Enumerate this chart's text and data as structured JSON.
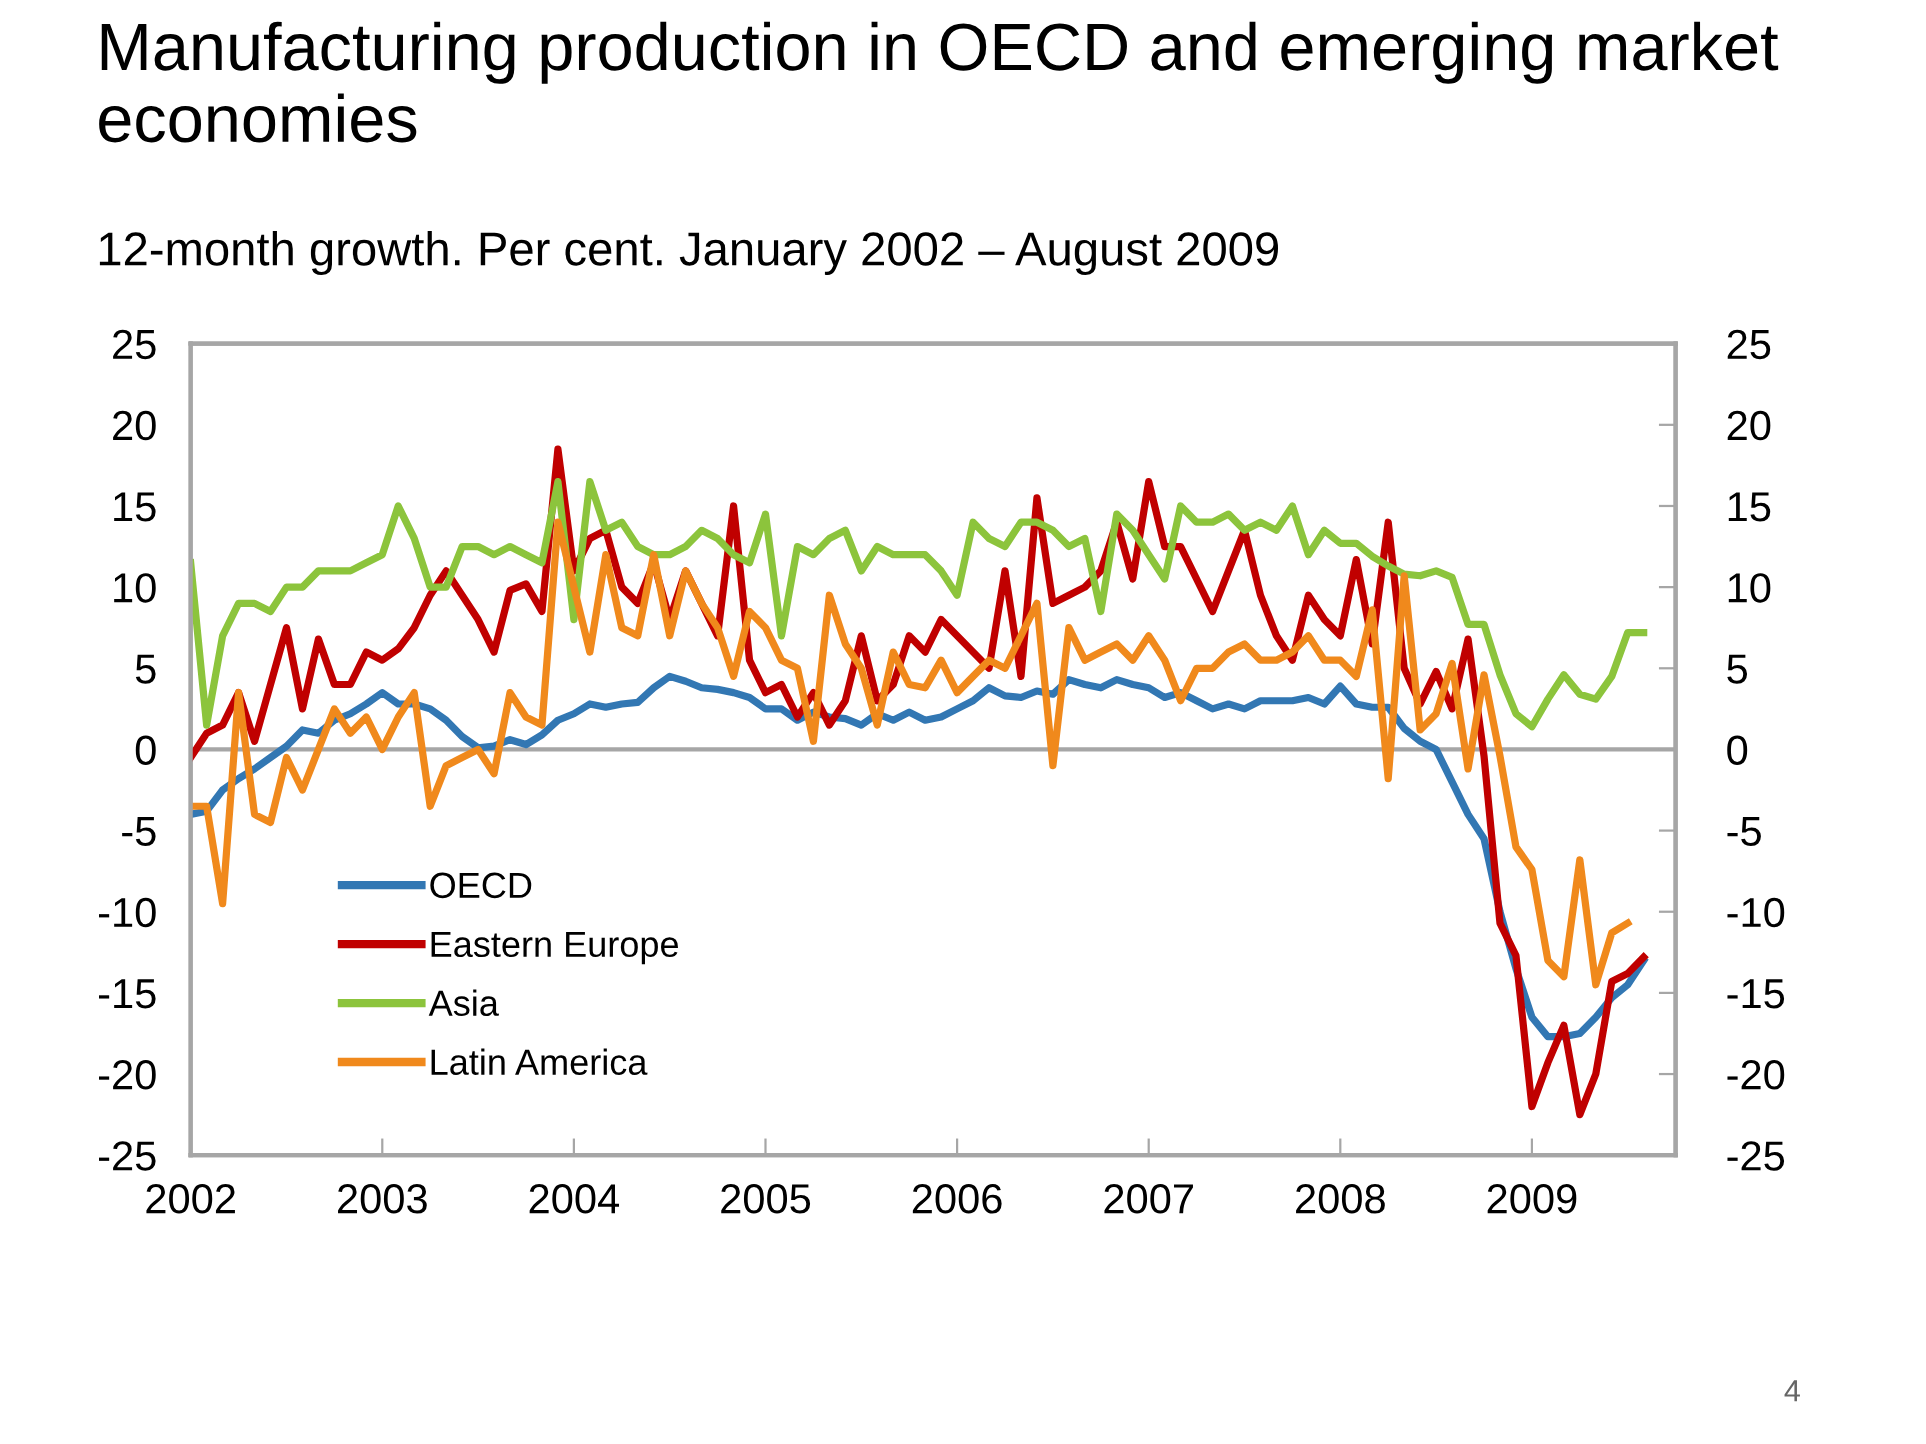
{
  "chart_data": {
    "type": "line",
    "title": "Manufacturing production in OECD and emerging market economies",
    "subtitle": "12-month growth. Per cent. January 2002 – August 2009",
    "annotations": [
      "4"
    ],
    "x": [
      "2002-01",
      "2002-02",
      "2002-03",
      "2002-04",
      "2002-05",
      "2002-06",
      "2002-07",
      "2002-08",
      "2002-09",
      "2002-10",
      "2002-11",
      "2002-12",
      "2003-01",
      "2003-02",
      "2003-03",
      "2003-04",
      "2003-05",
      "2003-06",
      "2003-07",
      "2003-08",
      "2003-09",
      "2003-10",
      "2003-11",
      "2003-12",
      "2004-01",
      "2004-02",
      "2004-03",
      "2004-04",
      "2004-05",
      "2004-06",
      "2004-07",
      "2004-08",
      "2004-09",
      "2004-10",
      "2004-11",
      "2004-12",
      "2005-01",
      "2005-02",
      "2005-03",
      "2005-04",
      "2005-05",
      "2005-06",
      "2005-07",
      "2005-08",
      "2005-09",
      "2005-10",
      "2005-11",
      "2005-12",
      "2006-01",
      "2006-02",
      "2006-03",
      "2006-04",
      "2006-05",
      "2006-06",
      "2006-07",
      "2006-08",
      "2006-09",
      "2006-10",
      "2006-11",
      "2006-12",
      "2007-01",
      "2007-02",
      "2007-03",
      "2007-04",
      "2007-05",
      "2007-06",
      "2007-07",
      "2007-08",
      "2007-09",
      "2007-10",
      "2007-11",
      "2007-12",
      "2008-01",
      "2008-02",
      "2008-03",
      "2008-04",
      "2008-05",
      "2008-06",
      "2008-07",
      "2008-08",
      "2008-09",
      "2008-10",
      "2008-11",
      "2008-12",
      "2009-01",
      "2009-02",
      "2009-03",
      "2009-04",
      "2009-05",
      "2009-06",
      "2009-07",
      "2009-08"
    ],
    "series": [
      {
        "name": "OECD",
        "color": "#3277b3",
        "values": [
          -4,
          -3.8,
          -2.5,
          -1.8,
          -1.2,
          -0.5,
          0.2,
          1.2,
          1.0,
          1.8,
          2.2,
          2.8,
          3.5,
          2.8,
          2.8,
          2.5,
          1.8,
          0.8,
          0.1,
          0.2,
          0.6,
          0.3,
          0.9,
          1.8,
          2.2,
          2.8,
          2.6,
          2.8,
          2.9,
          3.8,
          4.5,
          4.2,
          3.8,
          3.7,
          3.5,
          3.2,
          2.5,
          2.5,
          1.8,
          2.3,
          2.0,
          1.9,
          1.5,
          2.2,
          1.8,
          2.3,
          1.8,
          2.0,
          2.5,
          3.0,
          3.8,
          3.3,
          3.2,
          3.6,
          3.4,
          4.3,
          4.0,
          3.8,
          4.3,
          4.0,
          3.8,
          3.2,
          3.5,
          3.0,
          2.5,
          2.8,
          2.5,
          3.0,
          3.0,
          3.0,
          3.2,
          2.8,
          3.9,
          2.8,
          2.6,
          2.6,
          1.3,
          0.5,
          0,
          -2,
          -4,
          -5.5,
          -10,
          -13.5,
          -16.5,
          -17.7,
          -17.7,
          -17.5,
          -16.5,
          -15.3,
          -14.5,
          -13
        ]
      },
      {
        "name": "Eastern Europe",
        "color": "#c00000",
        "values": [
          -0.5,
          1,
          1.5,
          3.5,
          0.5,
          4,
          7.5,
          2.5,
          6.8,
          4,
          4,
          6,
          5.5,
          6.2,
          7.5,
          9.5,
          11,
          9.5,
          8,
          6,
          9.8,
          10.2,
          8.5,
          18.5,
          11,
          13,
          13.5,
          10,
          9,
          11.5,
          8,
          11,
          9,
          7,
          15,
          5.5,
          3.5,
          4,
          2,
          3.5,
          1.5,
          3,
          7,
          3,
          4,
          7,
          6,
          8,
          7,
          6,
          5,
          11,
          4.5,
          15.5,
          9,
          9.5,
          10,
          11,
          14,
          10.5,
          16.5,
          12.5,
          12.5,
          10.5,
          8.5,
          11,
          13.5,
          9.5,
          7,
          5.5,
          9.5,
          8,
          7,
          11.7,
          6.5,
          14,
          5,
          2.8,
          4.8,
          2.5,
          6.8,
          -0.4,
          -10.7,
          -12.7,
          -22,
          -19.3,
          -17,
          -22.5,
          -20,
          -14.3,
          -13.8,
          -12.8
        ]
      },
      {
        "name": "Asia",
        "color": "#8cc43c",
        "values": [
          11.5,
          1.5,
          7,
          9,
          9,
          8.5,
          10,
          10,
          11,
          11,
          11,
          11.5,
          12,
          15,
          13,
          10,
          10,
          12.5,
          12.5,
          12,
          12.5,
          12,
          11.5,
          16.5,
          8,
          16.5,
          13.5,
          14,
          12.5,
          12,
          12,
          12.5,
          13.5,
          13,
          12,
          11.5,
          14.5,
          7,
          12.5,
          12,
          13,
          13.5,
          11,
          12.5,
          12,
          12,
          12,
          11,
          9.5,
          14,
          13,
          12.5,
          14,
          14,
          13.5,
          12.5,
          13,
          8.5,
          14.5,
          13.5,
          12,
          10.5,
          15,
          14,
          14,
          14.5,
          13.5,
          14,
          13.5,
          15,
          12,
          13.5,
          12.7,
          12.7,
          11.9,
          11.3,
          10.8,
          10.7,
          11,
          10.6,
          7.7,
          7.7,
          4.6,
          2.2,
          1.4,
          3.1,
          4.6,
          3.4,
          3.1,
          4.5,
          7.2,
          7.2
        ]
      },
      {
        "name": "Latin America",
        "color": "#f0891c",
        "values": [
          -3.5,
          -3.5,
          -9.5,
          3.5,
          -4,
          -4.5,
          -0.5,
          -2.5,
          0,
          2.5,
          1,
          2,
          0,
          2,
          3.5,
          -3.5,
          -1,
          -0.5,
          0,
          -1.5,
          3.5,
          2,
          1.5,
          14,
          10,
          6,
          12,
          7.5,
          7,
          12,
          7,
          11,
          9,
          7.5,
          4.5,
          8.5,
          7.5,
          5.5,
          5,
          0.5,
          9.5,
          6.5,
          5,
          1.5,
          6,
          4,
          3.8,
          5.5,
          3.5,
          4.5,
          5.5,
          5,
          7,
          9,
          -1,
          7.5,
          5.5,
          6,
          6.5,
          5.5,
          7,
          5.5,
          3,
          5,
          5,
          6,
          6.5,
          5.5,
          5.5,
          6,
          7,
          5.5,
          5.5,
          4.5,
          8.6,
          -1.8,
          10.7,
          1.2,
          2.2,
          5.3,
          -1.2,
          4.6,
          -0.4,
          -6,
          -7.4,
          -13,
          -14,
          -6.8,
          -14.5,
          -11.3,
          -10.7,
          null
        ]
      }
    ],
    "xlim": [
      "2002-01",
      "2009-10"
    ],
    "xticks": [
      "2002",
      "2003",
      "2004",
      "2005",
      "2006",
      "2007",
      "2008",
      "2009"
    ],
    "ylim": [
      -25,
      25
    ],
    "yticks": [
      -25,
      -20,
      -15,
      -10,
      -5,
      0,
      5,
      10,
      15,
      20,
      25
    ],
    "y2lim": [
      -25,
      25
    ],
    "y2ticks": [
      -25,
      -20,
      -15,
      -10,
      -5,
      0,
      5,
      10,
      15,
      20,
      25
    ],
    "ref_lines": [
      {
        "axis": "y",
        "value": 0,
        "color": "#a6a6a6"
      }
    ],
    "legend": "bottom left",
    "grid": false,
    "line_style": "solid",
    "marker": "none"
  }
}
